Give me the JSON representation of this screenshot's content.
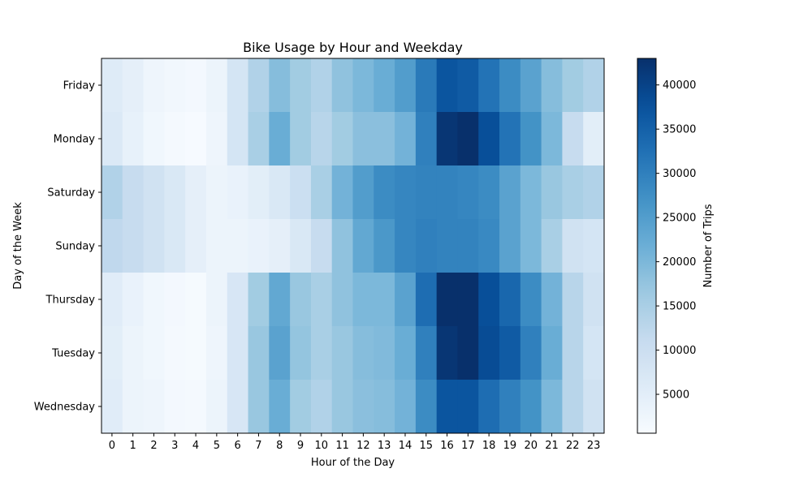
{
  "chart_data": {
    "type": "heatmap",
    "title": "Bike Usage by Hour and Weekday",
    "xlabel": "Hour of the Day",
    "ylabel": "Day of the Week",
    "x": [
      "0",
      "1",
      "2",
      "3",
      "4",
      "5",
      "6",
      "7",
      "8",
      "9",
      "10",
      "11",
      "12",
      "13",
      "14",
      "15",
      "16",
      "17",
      "18",
      "19",
      "20",
      "21",
      "22",
      "23"
    ],
    "y": [
      "Friday",
      "Monday",
      "Saturday",
      "Sunday",
      "Thursday",
      "Tuesday",
      "Wednesday"
    ],
    "values": [
      [
        6000,
        4500,
        2500,
        1800,
        1500,
        3000,
        8000,
        14000,
        19000,
        16000,
        14000,
        18000,
        20000,
        22000,
        25000,
        31000,
        37000,
        36000,
        32000,
        28000,
        24000,
        19000,
        16000,
        14000
      ],
      [
        6500,
        4000,
        2000,
        1200,
        800,
        2500,
        8000,
        15000,
        22000,
        16000,
        13000,
        16000,
        18500,
        18500,
        21000,
        30000,
        42000,
        43000,
        38000,
        32000,
        27000,
        20000,
        11000,
        5000
      ],
      [
        14000,
        11000,
        9000,
        7000,
        4500,
        3000,
        3500,
        5000,
        7000,
        10000,
        15000,
        21000,
        25000,
        28000,
        29000,
        29500,
        29500,
        29000,
        28000,
        24000,
        20000,
        17000,
        15000,
        14000
      ],
      [
        12000,
        11000,
        9000,
        7000,
        4500,
        3000,
        3000,
        3500,
        4500,
        7000,
        11000,
        18000,
        23000,
        26000,
        29000,
        30000,
        29500,
        29500,
        28500,
        24000,
        20000,
        15000,
        9000,
        8000
      ],
      [
        5500,
        3500,
        2000,
        1500,
        1000,
        3000,
        7500,
        16000,
        23000,
        17000,
        15000,
        18000,
        20000,
        20000,
        24000,
        33000,
        43000,
        43500,
        38000,
        34000,
        28000,
        21000,
        13000,
        9000
      ],
      [
        5000,
        3000,
        2000,
        1200,
        1000,
        2500,
        7500,
        17000,
        24000,
        17500,
        15000,
        17000,
        19000,
        19500,
        22000,
        30000,
        42000,
        43000,
        38500,
        36000,
        30000,
        22000,
        13000,
        8000
      ],
      [
        5500,
        3000,
        2500,
        1500,
        1200,
        3000,
        7500,
        17000,
        22000,
        16000,
        14000,
        17000,
        18500,
        19000,
        21000,
        28000,
        37000,
        37000,
        33000,
        30000,
        27000,
        20000,
        13000,
        9000
      ]
    ],
    "vmin": 600,
    "vmax": 43000,
    "colormap": "Blues",
    "colorbar": {
      "label": "Number of Trips",
      "ticks": [
        5000,
        10000,
        15000,
        20000,
        25000,
        30000,
        35000,
        40000
      ],
      "tick_labels": [
        "5000",
        "10000",
        "15000",
        "20000",
        "25000",
        "30000",
        "35000",
        "40000"
      ]
    },
    "grid": false
  }
}
